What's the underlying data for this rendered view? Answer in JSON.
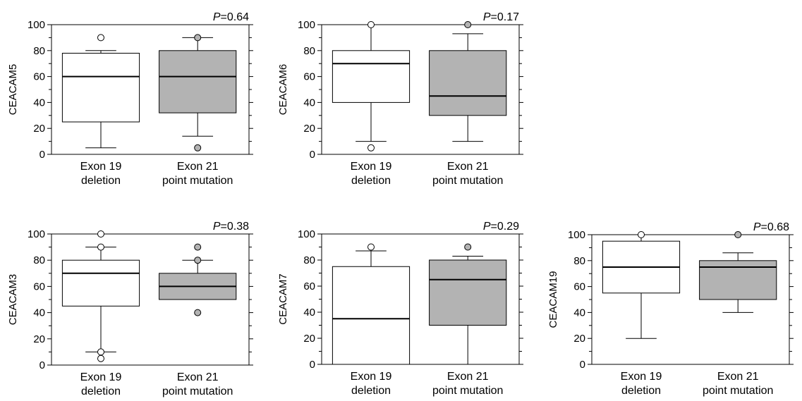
{
  "chart_data": [
    {
      "type": "box",
      "ylabel": "CEACAM5",
      "p_value": "=0.64",
      "ylim": [
        0,
        100
      ],
      "yticks": [
        0,
        20,
        40,
        60,
        80,
        100
      ],
      "categories": [
        "Exon 19|deletion",
        "Exon 21|point mutation"
      ],
      "boxes": [
        {
          "fill": "#ffffff",
          "whisker_low": 5,
          "q1": 25,
          "median": 60,
          "q3": 78,
          "whisker_high": 80,
          "outliers": [
            90
          ]
        },
        {
          "fill": "#b3b3b3",
          "whisker_low": 14,
          "q1": 32,
          "median": 60,
          "q3": 80,
          "whisker_high": 90,
          "outliers": [
            90,
            5
          ]
        }
      ]
    },
    {
      "type": "box",
      "ylabel": "CEACAM6",
      "p_value": "=0.17",
      "ylim": [
        0,
        100
      ],
      "yticks": [
        0,
        20,
        40,
        60,
        80,
        100
      ],
      "categories": [
        "Exon 19|deletion",
        "Exon 21|point mutation"
      ],
      "boxes": [
        {
          "fill": "#ffffff",
          "whisker_low": 10,
          "q1": 40,
          "median": 70,
          "q3": 80,
          "whisker_high": 100,
          "outliers": [
            100,
            5
          ]
        },
        {
          "fill": "#b3b3b3",
          "whisker_low": 10,
          "q1": 30,
          "median": 45,
          "q3": 80,
          "whisker_high": 93,
          "outliers": [
            100
          ]
        }
      ]
    },
    {
      "type": "box",
      "ylabel": "CEACAM3",
      "p_value": "=0.38",
      "ylim": [
        0,
        100
      ],
      "yticks": [
        0,
        20,
        40,
        60,
        80,
        100
      ],
      "categories": [
        "Exon 19|deletion",
        "Exon 21|point mutation"
      ],
      "boxes": [
        {
          "fill": "#ffffff",
          "whisker_low": 10,
          "q1": 45,
          "median": 70,
          "q3": 80,
          "whisker_high": 90,
          "outliers": [
            100,
            90,
            10,
            5
          ]
        },
        {
          "fill": "#b3b3b3",
          "whisker_low": 50,
          "q1": 50,
          "median": 60,
          "q3": 70,
          "whisker_high": 80,
          "outliers": [
            90,
            80,
            40
          ]
        }
      ]
    },
    {
      "type": "box",
      "ylabel": "CEACAM7",
      "p_value": "=0.29",
      "ylim": [
        0,
        100
      ],
      "yticks": [
        0,
        20,
        40,
        60,
        80,
        100
      ],
      "categories": [
        "Exon 19|deletion",
        "Exon 21|point mutation"
      ],
      "boxes": [
        {
          "fill": "#ffffff",
          "whisker_low": 0,
          "q1": 0,
          "median": 35,
          "q3": 75,
          "whisker_high": 87,
          "outliers": [
            90
          ]
        },
        {
          "fill": "#b3b3b3",
          "whisker_low": 0,
          "q1": 30,
          "median": 65,
          "q3": 80,
          "whisker_high": 83,
          "outliers": [
            90
          ]
        }
      ]
    },
    {
      "type": "box",
      "ylabel": "CEACAM19",
      "p_value": "=0.68",
      "ylim": [
        0,
        100
      ],
      "yticks": [
        0,
        20,
        40,
        60,
        80,
        100
      ],
      "categories": [
        "Exon 19|deletion",
        "Exon 21|point mutation"
      ],
      "boxes": [
        {
          "fill": "#ffffff",
          "whisker_low": 20,
          "q1": 55,
          "median": 75,
          "q3": 95,
          "whisker_high": 100,
          "outliers": [
            100
          ]
        },
        {
          "fill": "#b3b3b3",
          "whisker_low": 40,
          "q1": 50,
          "median": 75,
          "q3": 80,
          "whisker_high": 86,
          "outliers": [
            100
          ]
        }
      ]
    }
  ]
}
